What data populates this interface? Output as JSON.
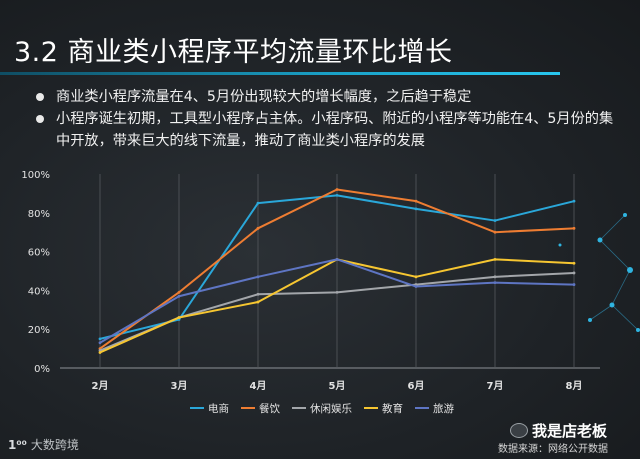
{
  "title": "3.2 商业类小程序平均流量环比增长",
  "bullets": [
    "商业类小程序流量在4、5月份出现较大的增长幅度，之后趋于稳定",
    "小程序诞生初期，工具型小程序占主体。小程序码、附近的小程序等功能在4、5月份的集中开放，带来巨大的线下流量，推动了商业类小程序的发展"
  ],
  "footer": {
    "logo_mark": "1⁰⁰",
    "logo_text": "大数跨境",
    "brand": "我是店老板",
    "source": "数据来源：网络公开数据"
  },
  "colors": {
    "background": "#1e2226",
    "accent": "#1aa2c8"
  },
  "chart_data": {
    "type": "line",
    "title": "",
    "xlabel": "",
    "ylabel": "",
    "categories": [
      "2月",
      "3月",
      "4月",
      "5月",
      "6月",
      "7月",
      "8月"
    ],
    "ylim": [
      0,
      100
    ],
    "yticks": [
      "0%",
      "20%",
      "40%",
      "60%",
      "80%",
      "100%"
    ],
    "grid": false,
    "legend_position": "bottom",
    "series": [
      {
        "name": "电商",
        "color": "#2aa7d9",
        "values": [
          15,
          25,
          85,
          89,
          82,
          76,
          86
        ]
      },
      {
        "name": "餐饮",
        "color": "#ee7d32",
        "values": [
          10,
          39,
          72,
          92,
          86,
          70,
          72
        ]
      },
      {
        "name": "休闲娱乐",
        "color": "#a3a6aa",
        "values": [
          9,
          26,
          38,
          39,
          43,
          47,
          49
        ]
      },
      {
        "name": "教育",
        "color": "#f6c631",
        "values": [
          8,
          26,
          34,
          56,
          47,
          56,
          54
        ]
      },
      {
        "name": "旅游",
        "color": "#5e75c3",
        "values": [
          13,
          37,
          47,
          56,
          42,
          44,
          43
        ]
      }
    ]
  }
}
